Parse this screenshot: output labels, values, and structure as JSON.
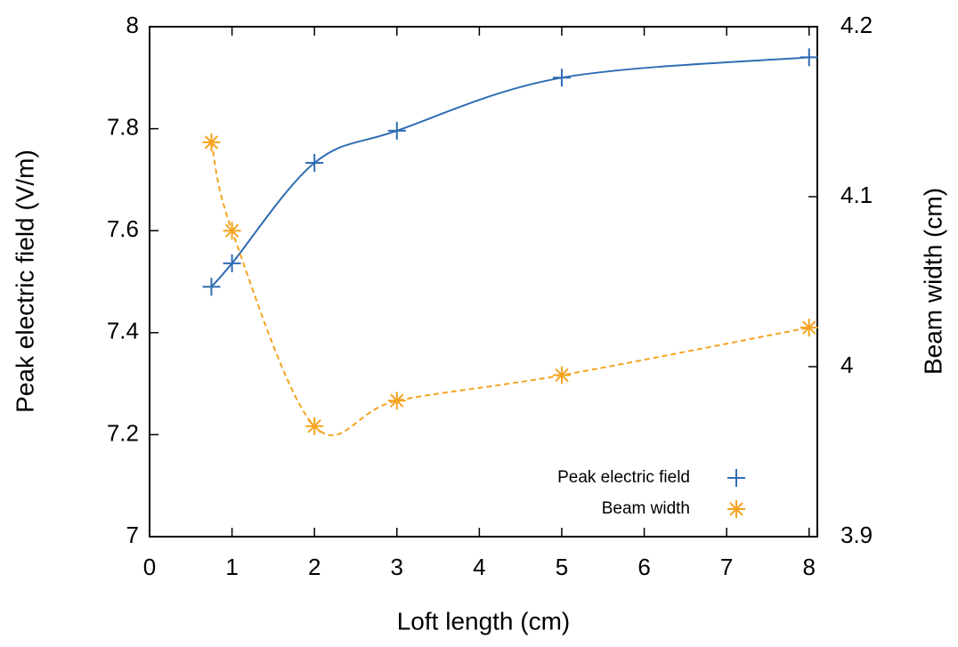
{
  "chart_data": {
    "type": "line",
    "xlabel": "Loft length (cm)",
    "ylabel": "Peak electric field (V/m)",
    "y2label": "Beam width (cm)",
    "xlim": [
      0,
      8.1
    ],
    "xticks": [
      0,
      1,
      2,
      3,
      4,
      5,
      6,
      7,
      8
    ],
    "ylim": [
      7,
      8
    ],
    "yticks": [
      7,
      7.2,
      7.4,
      7.6,
      7.8,
      8
    ],
    "y2lim": [
      3.9,
      4.2
    ],
    "y2ticks": [
      3.9,
      4,
      4.1,
      4.2
    ],
    "legend": "lower right",
    "series": [
      {
        "name": "Peak electric field",
        "color": "#2f6db3",
        "marker": "plus",
        "dash": false,
        "x": [
          0.75,
          1,
          2,
          3,
          5,
          8
        ],
        "values": [
          7.49,
          7.536,
          7.733,
          7.796,
          7.9,
          7.94
        ]
      },
      {
        "name": "Beam width",
        "color": "#f5a31f",
        "marker": "asterisk",
        "dash": true,
        "axis": "y2",
        "x": [
          0.75,
          1,
          2,
          3,
          5,
          8
        ],
        "values": [
          4.132,
          4.08,
          3.965,
          3.98,
          3.995,
          4.023
        ]
      }
    ]
  }
}
